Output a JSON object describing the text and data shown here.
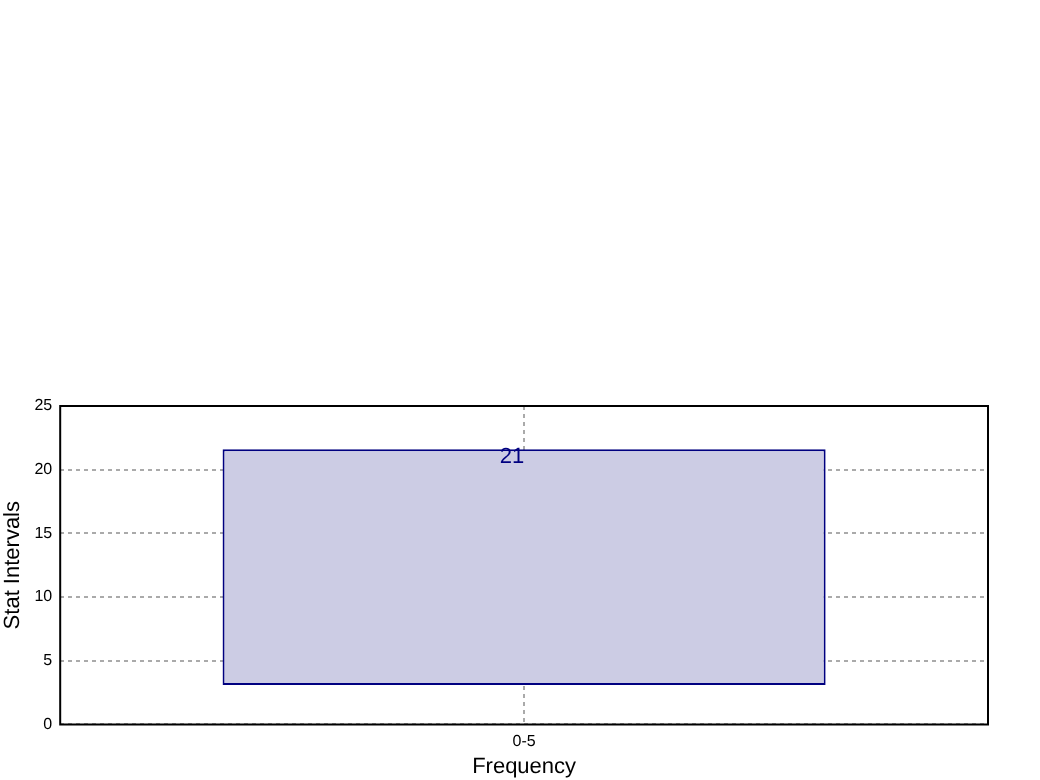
{
  "chart_data": {
    "type": "bar",
    "xlabel": "Frequency",
    "ylabel": "Stat Intervals",
    "categories": [
      "0-5"
    ],
    "series": [
      {
        "color": "#ccccE4",
        "values": [
          18.5
        ],
        "base": [
          3.1
        ]
      }
    ],
    "annotations": [
      {
        "text": "21",
        "x": "0-5",
        "y": 21
      }
    ],
    "ylim": [
      0,
      25
    ],
    "yticks": [
      0,
      5,
      10,
      15,
      20,
      25
    ],
    "grid": true
  }
}
